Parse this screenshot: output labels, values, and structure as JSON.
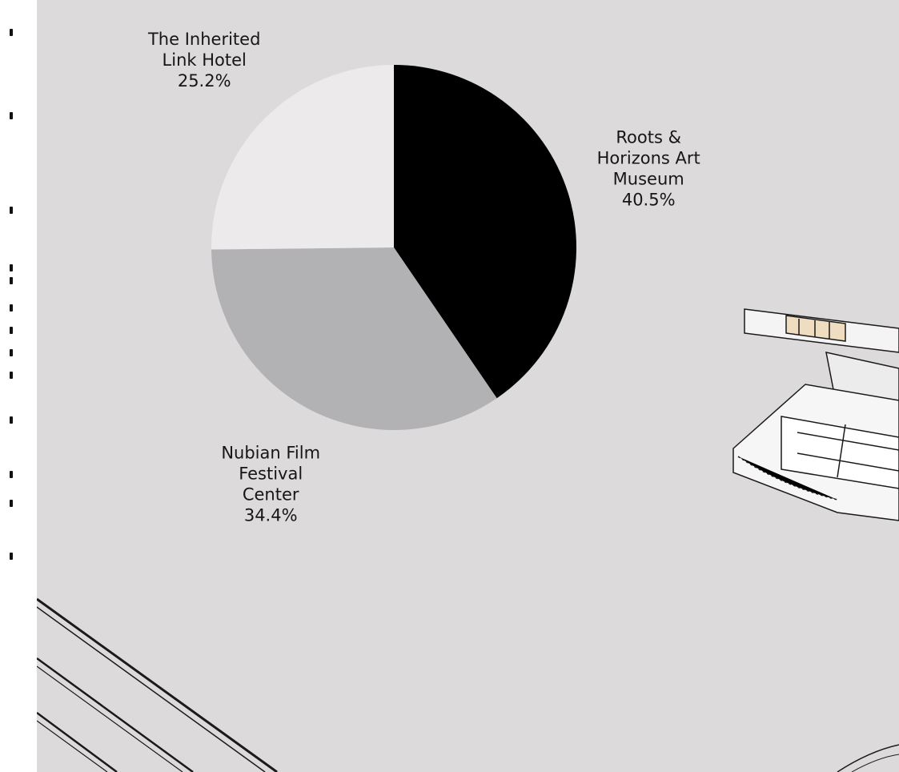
{
  "chart_data": {
    "type": "pie",
    "title": "",
    "slices": [
      {
        "label": [
          "Roots &",
          "Horizons Art",
          "Museum"
        ],
        "pct_label": "40.5%",
        "value": 40.5,
        "color": "#000000"
      },
      {
        "label": [
          "Nubian Film",
          "Festival",
          "Center"
        ],
        "pct_label": "34.4%",
        "value": 34.4,
        "color": "#b2b1b4"
      },
      {
        "label": [
          "The Inherited",
          "Link Hotel"
        ],
        "pct_label": "25.2%",
        "value": 25.2,
        "color": "#eceaeb"
      }
    ],
    "start_angle": "12 o'clock",
    "direction": "clockwise"
  },
  "colors": {
    "background": "#dcdadb",
    "edge_strip": "#ffffff"
  }
}
